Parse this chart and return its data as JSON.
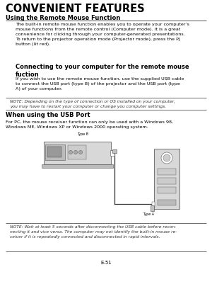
{
  "title": "CONVENIENT FEATURES",
  "section1_title": "Using the Remote Mouse Function",
  "section1_body": "The built-in remote mouse function enables you to operate your computer’s\nmouse functions from the remote control (Computer mode). It is a great\nconvenience for clicking through your computer-generated presentations.\nTo return to the projector operation mode (Projector mode), press the PJ\nbutton (lit red).",
  "section2_title": "Connecting to your computer for the remote mouse\nfuction",
  "section2_body": "If you wish to use the remote mouse function, use the supplied USB cable\nto connect the USB port (type B) of the projector and the USB port (type\nA) of your computer.",
  "note1": "NOTE: Depending on the type of connection or OS installed on your computer,\nyou may have to restart your computer or change you computer settings.",
  "section3_title": "When using the USB Port",
  "section3_body": "For PC, the mouse receiver function can only be used with a Windows 98,\nWindows ME, Windows XP or Windows 2000 operating system.",
  "note2": "NOTE: Wait at least 5 seconds after disconnecting the USB cable before recon-\nnecting it and vice versa. The computer may not identify the built-in mouse re-\nceiver if it is repeatedly connected and disconnected in rapid intervals.",
  "footer": "E-51",
  "bg_color": "#ffffff",
  "text_color": "#000000",
  "title_font_size": 10.5,
  "section_title_font_size": 6.0,
  "body_font_size": 4.6,
  "note_font_size": 4.3,
  "footer_font_size": 5.0
}
